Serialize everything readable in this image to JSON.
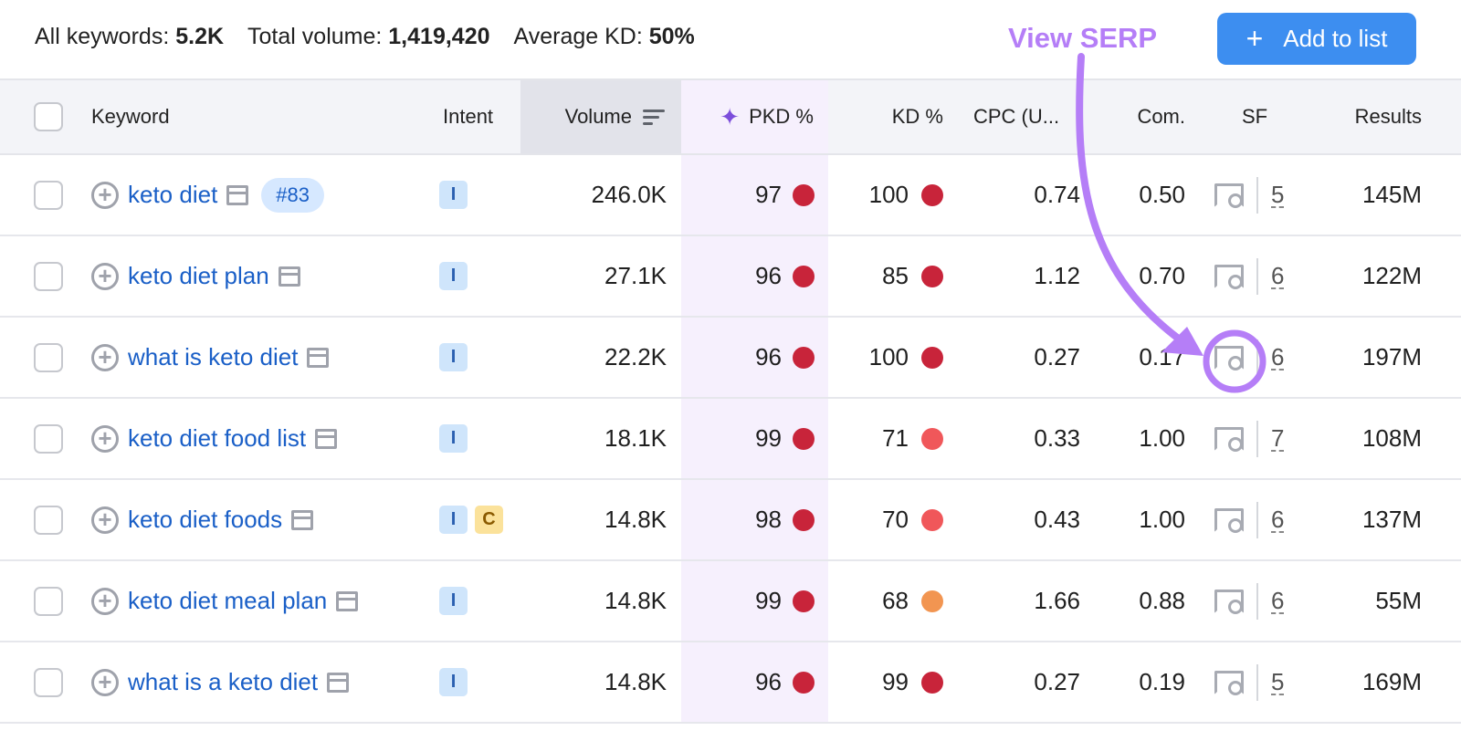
{
  "summary": {
    "all_keywords_label": "All keywords:",
    "all_keywords": "5.2K",
    "total_volume_label": "Total volume:",
    "total_volume": "1,419,420",
    "avg_kd_label": "Average KD:",
    "avg_kd": "50%"
  },
  "add_button": {
    "icon": "plus-icon",
    "label": "Add to list"
  },
  "annotation": {
    "label": "View SERP",
    "color": "#b57ef7"
  },
  "columns": {
    "keyword": "Keyword",
    "intent": "Intent",
    "volume": "Volume",
    "pkd": "PKD %",
    "kd": "KD %",
    "cpc": "CPC (U...",
    "com": "Com.",
    "sf": "SF",
    "results": "Results"
  },
  "colors": {
    "dark_red": "#c8243a",
    "red": "#f0575a",
    "orange": "#f29551",
    "link": "#1a5fc7",
    "accent": "#3d8ef0"
  },
  "rows": [
    {
      "keyword": "keto diet",
      "badge": "#83",
      "intent": [
        "I"
      ],
      "volume": "246.0K",
      "pkd": "97",
      "pkd_color": "dark_red",
      "kd": "100",
      "kd_color": "dark_red",
      "cpc": "0.74",
      "com": "0.50",
      "sf": "5",
      "results": "145M"
    },
    {
      "keyword": "keto diet plan",
      "intent": [
        "I"
      ],
      "volume": "27.1K",
      "pkd": "96",
      "pkd_color": "dark_red",
      "kd": "85",
      "kd_color": "dark_red",
      "cpc": "1.12",
      "com": "0.70",
      "sf": "6",
      "results": "122M"
    },
    {
      "keyword": "what is keto diet",
      "intent": [
        "I"
      ],
      "volume": "22.2K",
      "pkd": "96",
      "pkd_color": "dark_red",
      "kd": "100",
      "kd_color": "dark_red",
      "cpc": "0.27",
      "com": "0.17",
      "sf": "6",
      "results": "197M"
    },
    {
      "keyword": "keto diet food list",
      "intent": [
        "I"
      ],
      "volume": "18.1K",
      "pkd": "99",
      "pkd_color": "dark_red",
      "kd": "71",
      "kd_color": "red",
      "cpc": "0.33",
      "com": "1.00",
      "sf": "7",
      "results": "108M"
    },
    {
      "keyword": "keto diet foods",
      "intent": [
        "I",
        "C"
      ],
      "volume": "14.8K",
      "pkd": "98",
      "pkd_color": "dark_red",
      "kd": "70",
      "kd_color": "red",
      "cpc": "0.43",
      "com": "1.00",
      "sf": "6",
      "results": "137M"
    },
    {
      "keyword": "keto diet meal plan",
      "intent": [
        "I"
      ],
      "volume": "14.8K",
      "pkd": "99",
      "pkd_color": "dark_red",
      "kd": "68",
      "kd_color": "orange",
      "cpc": "1.66",
      "com": "0.88",
      "sf": "6",
      "results": "55M"
    },
    {
      "keyword": "what is a keto diet",
      "intent": [
        "I"
      ],
      "volume": "14.8K",
      "pkd": "96",
      "pkd_color": "dark_red",
      "kd": "99",
      "kd_color": "dark_red",
      "cpc": "0.27",
      "com": "0.19",
      "sf": "5",
      "results": "169M"
    }
  ]
}
